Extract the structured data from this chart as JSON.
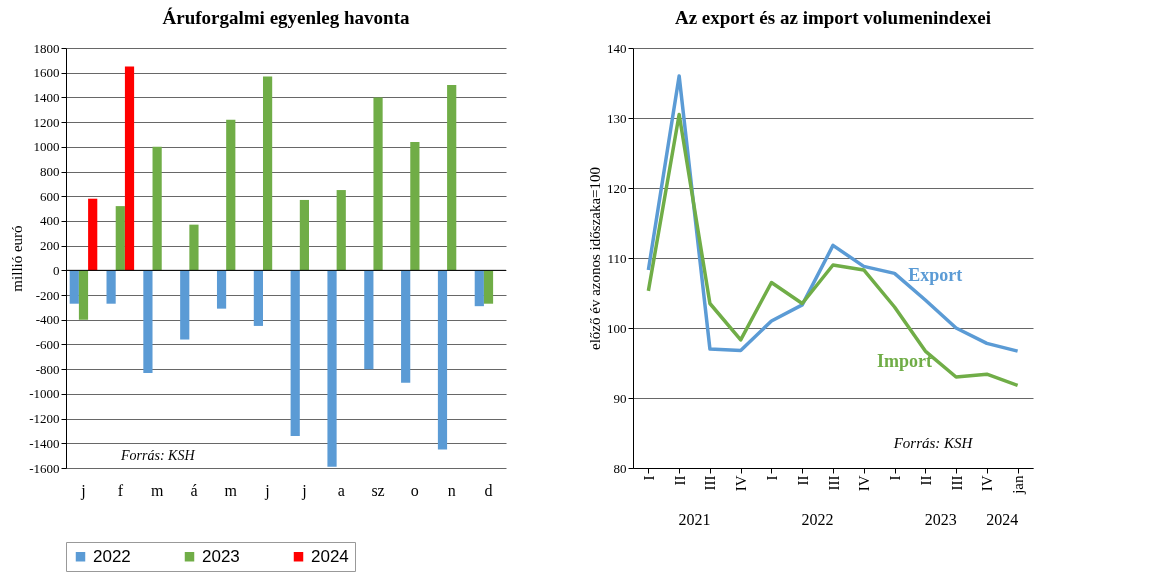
{
  "chart_data": [
    {
      "type": "bar",
      "title": "Áruforgalmi egyenleg havonta",
      "ylabel": "millió euró",
      "categories": [
        "j",
        "f",
        "m",
        "á",
        "m",
        "j",
        "j",
        "a",
        "sz",
        "o",
        "n",
        "d"
      ],
      "series": [
        {
          "name": "2022",
          "color": "#5b9bd5",
          "values": [
            -270,
            -270,
            -830,
            -560,
            -310,
            -450,
            -1340,
            -1590,
            -800,
            -910,
            -1450,
            -290
          ]
        },
        {
          "name": "2023",
          "color": "#70ad47",
          "values": [
            -400,
            520,
            1000,
            370,
            1220,
            1570,
            570,
            650,
            1400,
            1040,
            1500,
            -270
          ]
        },
        {
          "name": "2024",
          "color": "#ff0000",
          "values": [
            580,
            1650,
            null,
            null,
            null,
            null,
            null,
            null,
            null,
            null,
            null,
            null
          ]
        }
      ],
      "ylim": [
        -1600,
        1800
      ],
      "yticks": [
        -1600,
        -1400,
        -1200,
        -1000,
        -800,
        -600,
        -400,
        -200,
        0,
        200,
        400,
        600,
        800,
        1000,
        1200,
        1400,
        1600,
        1800
      ],
      "grid": "y",
      "legend": "bottom",
      "annotations": [
        "Forrás: KSH"
      ]
    },
    {
      "type": "line",
      "title": "Az export és az import volumenindexei",
      "ylabel": "előző év azonos időszaka=100",
      "categories": [
        "I",
        "II",
        "III",
        "IV",
        "I",
        "II",
        "III",
        "IV",
        "I",
        "II",
        "III",
        "IV",
        "jan"
      ],
      "series": [
        {
          "name": "Export",
          "color": "#5b9bd5",
          "values": [
            108.3,
            136,
            97,
            96.8,
            101,
            103.3,
            111.8,
            108.8,
            107.8,
            104,
            100,
            97.8,
            96.7
          ]
        },
        {
          "name": "Import",
          "color": "#70ad47",
          "values": [
            105.3,
            130.5,
            103.5,
            98.3,
            106.5,
            103.5,
            109,
            108.3,
            103,
            96.7,
            93,
            93.4,
            91.8
          ]
        }
      ],
      "ylim": [
        80,
        140
      ],
      "yticks": [
        80,
        90,
        100,
        110,
        120,
        130,
        140
      ],
      "grid": "y",
      "legend": false,
      "annotations": [
        "2021",
        "2022",
        "2023",
        "2024",
        "Forrás: KSH"
      ]
    }
  ]
}
